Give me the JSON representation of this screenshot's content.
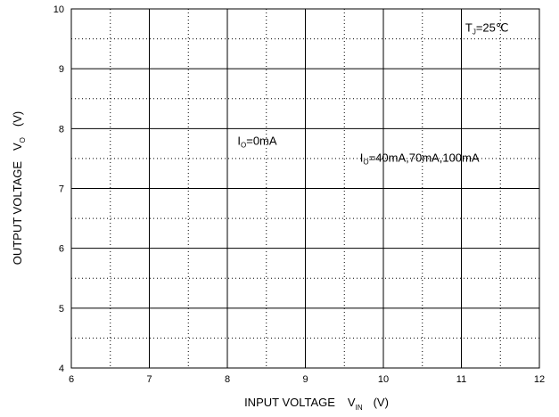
{
  "chart_data": {
    "type": "line",
    "title": "",
    "xlabel": {
      "main": "INPUT VOLTAGE",
      "symbol": "V",
      "subscript": "IN",
      "unit": "(V)"
    },
    "ylabel": {
      "main": "OUTPUT VOLTAGE",
      "symbol": "V",
      "subscript": "O",
      "unit": "(V)"
    },
    "xlim": [
      6,
      12
    ],
    "ylim": [
      4,
      10
    ],
    "xticks": [
      "6",
      "7",
      "8",
      "9",
      "10",
      "11",
      "12"
    ],
    "yticks": [
      "4",
      "5",
      "6",
      "7",
      "8",
      "9",
      "10"
    ],
    "grid": true,
    "series": [],
    "annotations": [
      {
        "id": "tj",
        "main": "T",
        "subscript": "J",
        "text": "=25℃",
        "x": 11.05,
        "y": 9.62
      },
      {
        "id": "io0",
        "main": "I",
        "subscript": "O",
        "text": "=0mA",
        "x": 8.13,
        "y": 7.73
      },
      {
        "id": "io40",
        "main": "I",
        "subscript": "O",
        "text": "=40mA,70mA,100mA",
        "x": 9.7,
        "y": 7.45
      }
    ]
  }
}
